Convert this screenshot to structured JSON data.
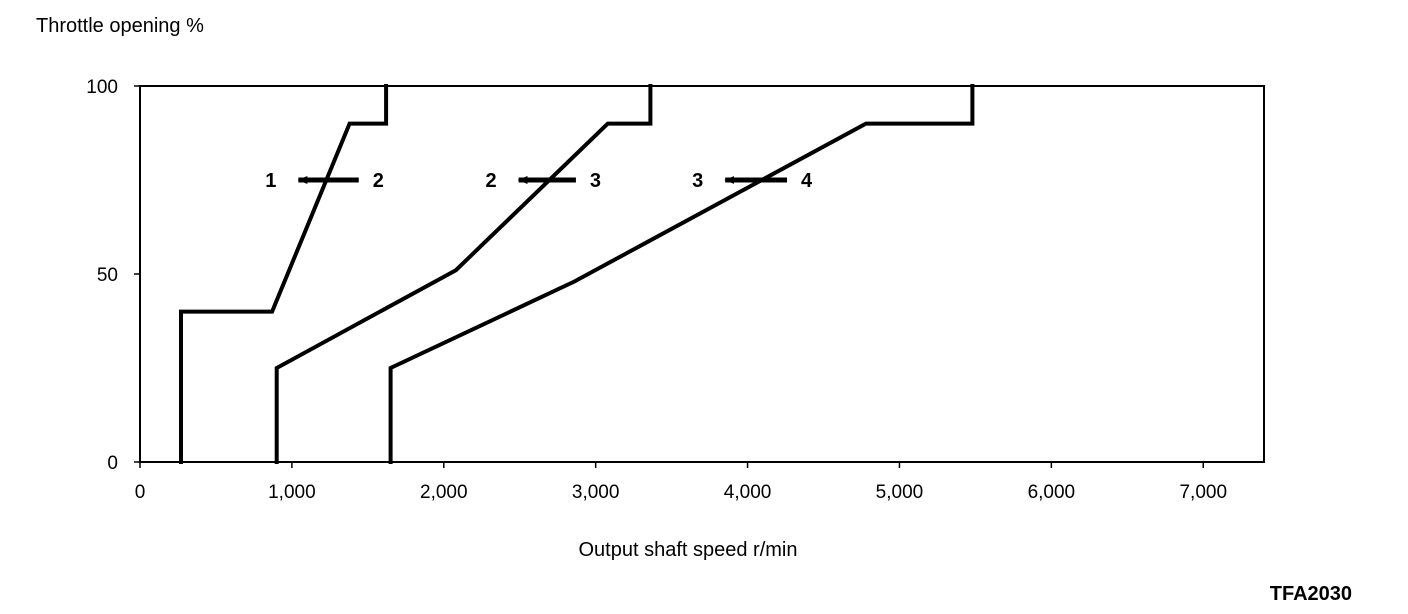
{
  "chart_data": {
    "type": "line",
    "title": "",
    "ylabel": "Throttle opening %",
    "xlabel": "Output shaft speed r/min",
    "xlim": [
      0,
      7400
    ],
    "ylim": [
      0,
      100
    ],
    "x_ticks": [
      {
        "value": 0,
        "label": "0"
      },
      {
        "value": 1000,
        "label": "1,000"
      },
      {
        "value": 2000,
        "label": "2,000"
      },
      {
        "value": 3000,
        "label": "3,000"
      },
      {
        "value": 4000,
        "label": "4,000"
      },
      {
        "value": 5000,
        "label": "5,000"
      },
      {
        "value": 6000,
        "label": "6,000"
      },
      {
        "value": 7000,
        "label": "7,000"
      }
    ],
    "y_ticks": [
      {
        "value": 0,
        "label": "0"
      },
      {
        "value": 50,
        "label": "50"
      },
      {
        "value": 100,
        "label": "100"
      }
    ],
    "grid": false,
    "series": [
      {
        "x": [
          270,
          270,
          870,
          1380,
          1620,
          1620
        ],
        "y": [
          0,
          40,
          40,
          90,
          90,
          100
        ]
      },
      {
        "x": [
          900,
          900,
          2080,
          3080,
          3360,
          3360
        ],
        "y": [
          0,
          25,
          51,
          90,
          90,
          100
        ]
      },
      {
        "x": [
          1650,
          1650,
          2860,
          4780,
          5480,
          5480
        ],
        "y": [
          0,
          25,
          48,
          90,
          90,
          100
        ]
      }
    ],
    "annotations": [
      {
        "from": "2",
        "to": "1",
        "x_from": 1440,
        "x_to": 990,
        "y": 75
      },
      {
        "from": "3",
        "to": "2",
        "x_from": 2870,
        "x_to": 2440,
        "y": 75
      },
      {
        "from": "4",
        "to": "3",
        "x_from": 4260,
        "x_to": 3800,
        "y": 75
      }
    ]
  },
  "figure_code": "TFA2030"
}
